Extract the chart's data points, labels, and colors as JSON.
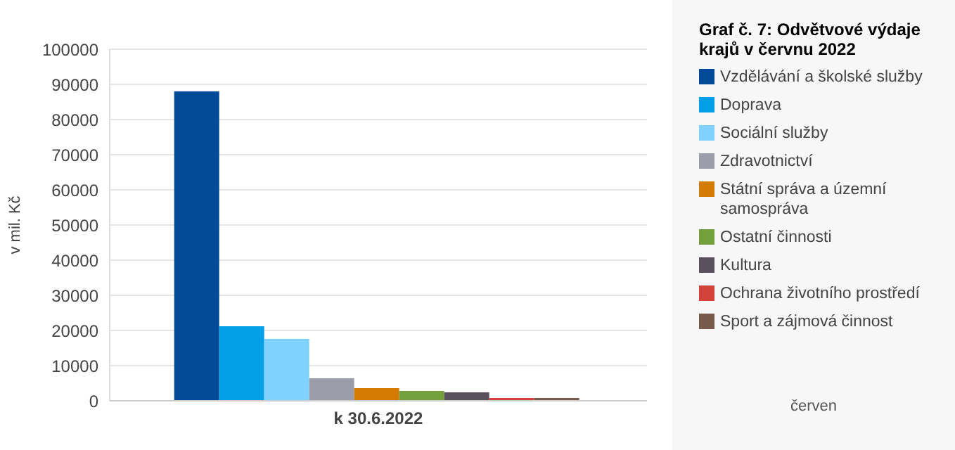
{
  "chart_data": {
    "type": "bar",
    "title": "Graf č. 7: Odvětvové výdaje krajů v červnu 2022",
    "ylabel": "v mil. Kč",
    "categories": [
      "k 30.6.2022"
    ],
    "series": [
      {
        "name": "Vzdělávání a školské služby",
        "color": "#034a99",
        "values": [
          88000
        ]
      },
      {
        "name": "Doprava",
        "color": "#03a0e8",
        "values": [
          21200
        ]
      },
      {
        "name": "Sociální služby",
        "color": "#7dd3fd",
        "values": [
          17600
        ]
      },
      {
        "name": "Zdravotnictví",
        "color": "#9b9ea8",
        "values": [
          6400
        ]
      },
      {
        "name": "Státní správa a územní samospráva",
        "color": "#d57a03",
        "values": [
          3600
        ]
      },
      {
        "name": "Ostatní činnosti",
        "color": "#73a03b",
        "values": [
          2800
        ]
      },
      {
        "name": "Kultura",
        "color": "#5a505d",
        "values": [
          2400
        ]
      },
      {
        "name": "Ochrana životního prostředí",
        "color": "#d2433a",
        "values": [
          800
        ]
      },
      {
        "name": "Sport a zájmová činnost",
        "color": "#775a4a",
        "values": [
          800
        ]
      }
    ],
    "ylim": [
      0,
      100000
    ],
    "yticks": [
      0,
      10000,
      20000,
      30000,
      40000,
      50000,
      60000,
      70000,
      80000,
      90000,
      100000
    ],
    "grid": "y",
    "legend": "right",
    "annotations": [
      "červen"
    ]
  }
}
